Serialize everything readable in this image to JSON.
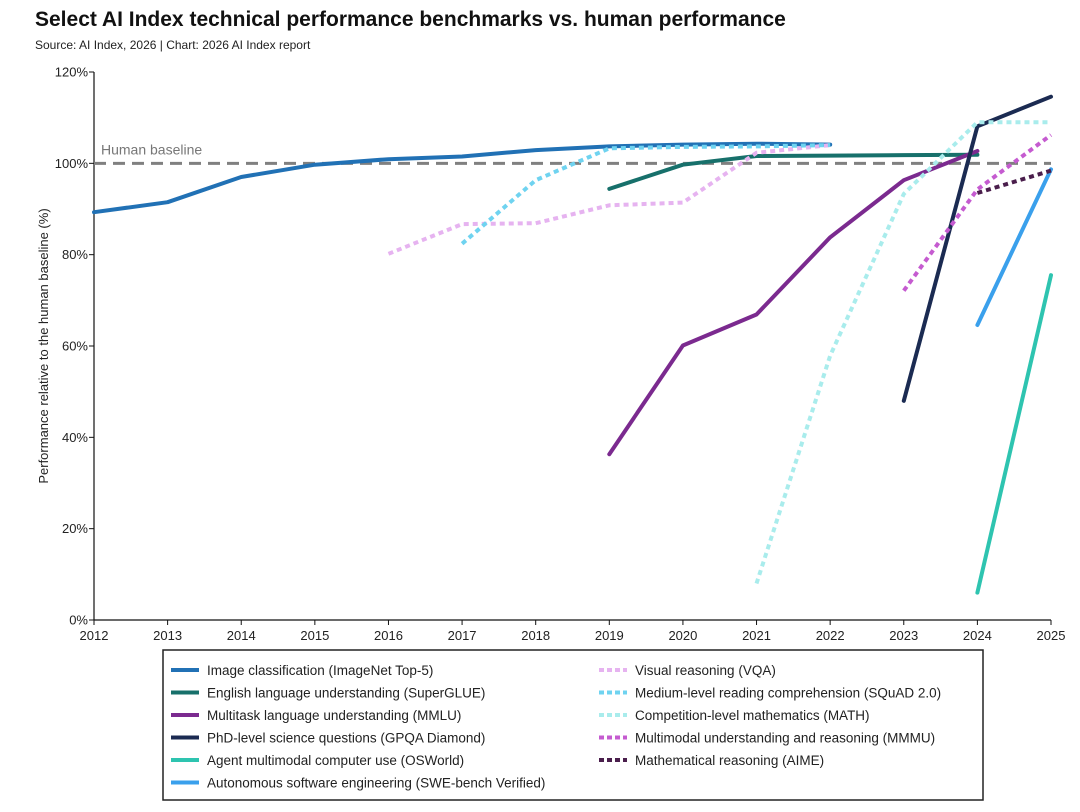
{
  "title": "Select AI Index technical performance benchmarks vs. human performance",
  "subtitle": "Source: AI Index, 2026 | Chart: 2026 AI Index report",
  "chart_data": {
    "type": "line",
    "ylabel": "Performance relative to the human baseline (%)",
    "xlabel": "",
    "xlim": [
      2012,
      2025
    ],
    "ylim": [
      0,
      120
    ],
    "x_ticks": [
      "2012",
      "2013",
      "2014",
      "2015",
      "2016",
      "2017",
      "2018",
      "2019",
      "2020",
      "2021",
      "2022",
      "2023",
      "2024",
      "2025"
    ],
    "y_ticks": [
      {
        "value": 0,
        "label": "0%"
      },
      {
        "value": 20,
        "label": "20%"
      },
      {
        "value": 40,
        "label": "40%"
      },
      {
        "value": 60,
        "label": "60%"
      },
      {
        "value": 80,
        "label": "80%"
      },
      {
        "value": 100,
        "label": "100%"
      },
      {
        "value": 120,
        "label": "120%"
      }
    ],
    "grid": false,
    "reference_line": {
      "value": 100,
      "label": "Human baseline",
      "color": "#808080"
    },
    "legend_placement": "bottom",
    "series": [
      {
        "name": "Image classification (ImageNet Top-5)",
        "color": "#2171b5",
        "dash": false,
        "points": [
          [
            2012,
            89.3
          ],
          [
            2013,
            91.5
          ],
          [
            2014,
            97
          ],
          [
            2015,
            99.7
          ],
          [
            2016,
            100.9
          ],
          [
            2017,
            101.5
          ],
          [
            2018,
            102.9
          ],
          [
            2019,
            103.7
          ],
          [
            2020,
            104.1
          ],
          [
            2021,
            104.3
          ],
          [
            2022,
            104.1
          ]
        ]
      },
      {
        "name": "English language understanding (SuperGLUE)",
        "color": "#17706b",
        "dash": false,
        "points": [
          [
            2019,
            94.4
          ],
          [
            2020,
            99.7
          ],
          [
            2021,
            101.6
          ],
          [
            2022,
            101.7
          ],
          [
            2023,
            101.8
          ],
          [
            2024,
            101.9
          ]
        ]
      },
      {
        "name": "Multitask language understanding (MMLU)",
        "color": "#7b2a8f",
        "dash": false,
        "points": [
          [
            2019,
            36.3
          ],
          [
            2020,
            60.1
          ],
          [
            2021,
            66.9
          ],
          [
            2022,
            83.8
          ],
          [
            2023,
            96.3
          ],
          [
            2024,
            102.7
          ]
        ]
      },
      {
        "name": "PhD-level science questions (GPQA Diamond)",
        "color": "#1b2b52",
        "dash": false,
        "points": [
          [
            2023,
            48
          ],
          [
            2024,
            108.1
          ],
          [
            2025,
            114.6
          ]
        ]
      },
      {
        "name": "Agent multimodal computer use (OSWorld)",
        "color": "#2ec4b0",
        "dash": false,
        "points": [
          [
            2024,
            6
          ],
          [
            2025,
            75.5
          ]
        ]
      },
      {
        "name": "Autonomous software engineering (SWE-bench Verified)",
        "color": "#3aa0ec",
        "dash": false,
        "points": [
          [
            2024,
            64.6
          ],
          [
            2025,
            98.7
          ]
        ]
      },
      {
        "name": "Visual reasoning (VQA)",
        "color": "#e6b3f0",
        "dash": true,
        "points": [
          [
            2016,
            80.2
          ],
          [
            2017,
            86.7
          ],
          [
            2018,
            86.9
          ],
          [
            2019,
            90.8
          ],
          [
            2020,
            91.4
          ],
          [
            2021,
            102.3
          ],
          [
            2022,
            104
          ]
        ]
      },
      {
        "name": "Medium-level reading comprehension (SQuAD 2.0)",
        "color": "#6fd3f0",
        "dash": true,
        "points": [
          [
            2017,
            82.4
          ],
          [
            2018,
            96.3
          ],
          [
            2019,
            103.3
          ],
          [
            2020,
            103.6
          ],
          [
            2021,
            103.7
          ],
          [
            2022,
            104
          ]
        ]
      },
      {
        "name": "Competition-level mathematics (MATH)",
        "color": "#a9ecec",
        "dash": true,
        "points": [
          [
            2021,
            8
          ],
          [
            2022,
            57.9
          ],
          [
            2023,
            93.3
          ],
          [
            2024,
            109
          ],
          [
            2025,
            109
          ]
        ]
      },
      {
        "name": "Multimodal understanding and reasoning (MMMU)",
        "color": "#c55bd0",
        "dash": true,
        "points": [
          [
            2023,
            72.1
          ],
          [
            2024,
            94.3
          ],
          [
            2025,
            106.2
          ]
        ]
      },
      {
        "name": "Mathematical reasoning (AIME)",
        "color": "#4a1e4c",
        "dash": true,
        "points": [
          [
            2024,
            93.5
          ],
          [
            2025,
            98.4
          ]
        ]
      }
    ]
  }
}
